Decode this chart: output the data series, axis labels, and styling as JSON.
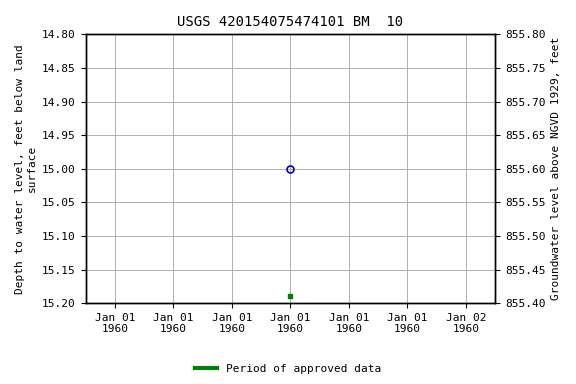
{
  "title": "USGS 420154075474101 BM  10",
  "ylabel_left": "Depth to water level, feet below land\nsurface",
  "ylabel_right": "Groundwater level above NGVD 1929, feet",
  "ylim_left": [
    15.2,
    14.8
  ],
  "ylim_right": [
    855.4,
    855.8
  ],
  "yticks_left": [
    14.8,
    14.85,
    14.9,
    14.95,
    15.0,
    15.05,
    15.1,
    15.15,
    15.2
  ],
  "yticks_right": [
    855.8,
    855.75,
    855.7,
    855.65,
    855.6,
    855.55,
    855.5,
    855.45,
    855.4
  ],
  "pt1_depth": 15.0,
  "pt2_depth": 15.19,
  "legend_label": "Period of approved data",
  "legend_color": "#008000",
  "bg_color": "#ffffff",
  "grid_color": "#b0b0b0",
  "title_fontsize": 10,
  "label_fontsize": 8,
  "tick_fontsize": 8,
  "x_tick_labels": [
    "Jan 01\n1960",
    "Jan 01\n1960",
    "Jan 01\n1960",
    "Jan 01\n1960",
    "Jan 01\n1960",
    "Jan 01\n1960",
    "Jan 02\n1960"
  ]
}
